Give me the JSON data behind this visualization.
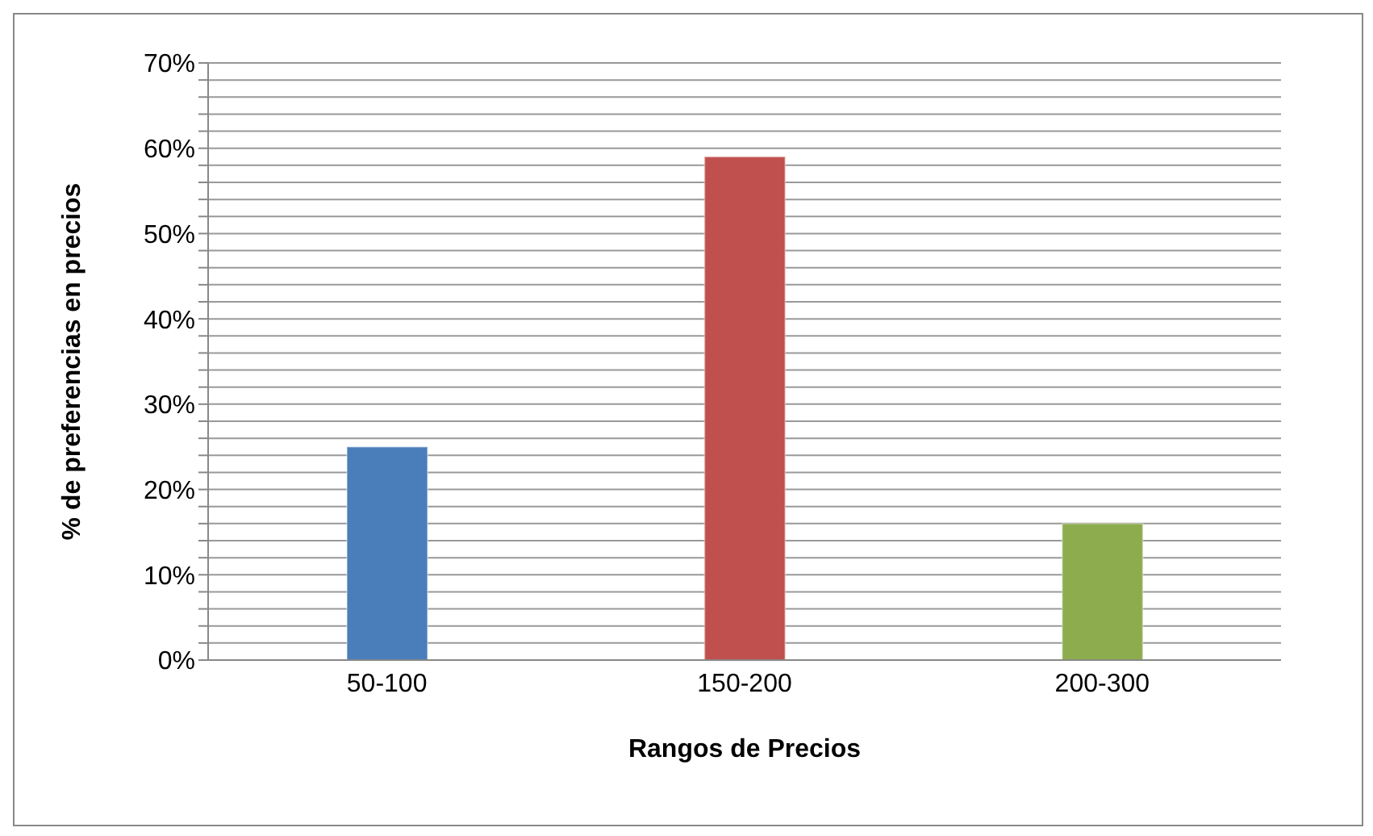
{
  "chart_data": {
    "type": "bar",
    "xlabel": "Rangos de Precios",
    "ylabel": "% de preferencias en precios",
    "categories": [
      "50-100",
      "150-200",
      "200-300"
    ],
    "values": [
      25,
      59,
      16
    ],
    "colors": [
      "#4a7ebb",
      "#c0504d",
      "#8cac4e"
    ],
    "ylim": [
      0,
      70
    ],
    "yticks": [
      {
        "value": 0,
        "label": "0%"
      },
      {
        "value": 2,
        "label": null
      },
      {
        "value": 4,
        "label": null
      },
      {
        "value": 6,
        "label": null
      },
      {
        "value": 8,
        "label": null
      },
      {
        "value": 10,
        "label": "10%"
      },
      {
        "value": 12,
        "label": null
      },
      {
        "value": 14,
        "label": null
      },
      {
        "value": 16,
        "label": null
      },
      {
        "value": 18,
        "label": null
      },
      {
        "value": 20,
        "label": "20%"
      },
      {
        "value": 22,
        "label": null
      },
      {
        "value": 24,
        "label": null
      },
      {
        "value": 26,
        "label": null
      },
      {
        "value": 28,
        "label": null
      },
      {
        "value": 30,
        "label": "30%"
      },
      {
        "value": 32,
        "label": null
      },
      {
        "value": 34,
        "label": null
      },
      {
        "value": 36,
        "label": null
      },
      {
        "value": 38,
        "label": null
      },
      {
        "value": 40,
        "label": "40%"
      },
      {
        "value": 42,
        "label": null
      },
      {
        "value": 44,
        "label": null
      },
      {
        "value": 46,
        "label": null
      },
      {
        "value": 48,
        "label": null
      },
      {
        "value": 50,
        "label": "50%"
      },
      {
        "value": 52,
        "label": null
      },
      {
        "value": 54,
        "label": null
      },
      {
        "value": 56,
        "label": null
      },
      {
        "value": 58,
        "label": null
      },
      {
        "value": 60,
        "label": "60%"
      },
      {
        "value": 62,
        "label": null
      },
      {
        "value": 64,
        "label": null
      },
      {
        "value": 66,
        "label": null
      },
      {
        "value": 68,
        "label": null
      },
      {
        "value": 70,
        "label": "70%"
      }
    ],
    "grid": "y",
    "legend": false
  }
}
